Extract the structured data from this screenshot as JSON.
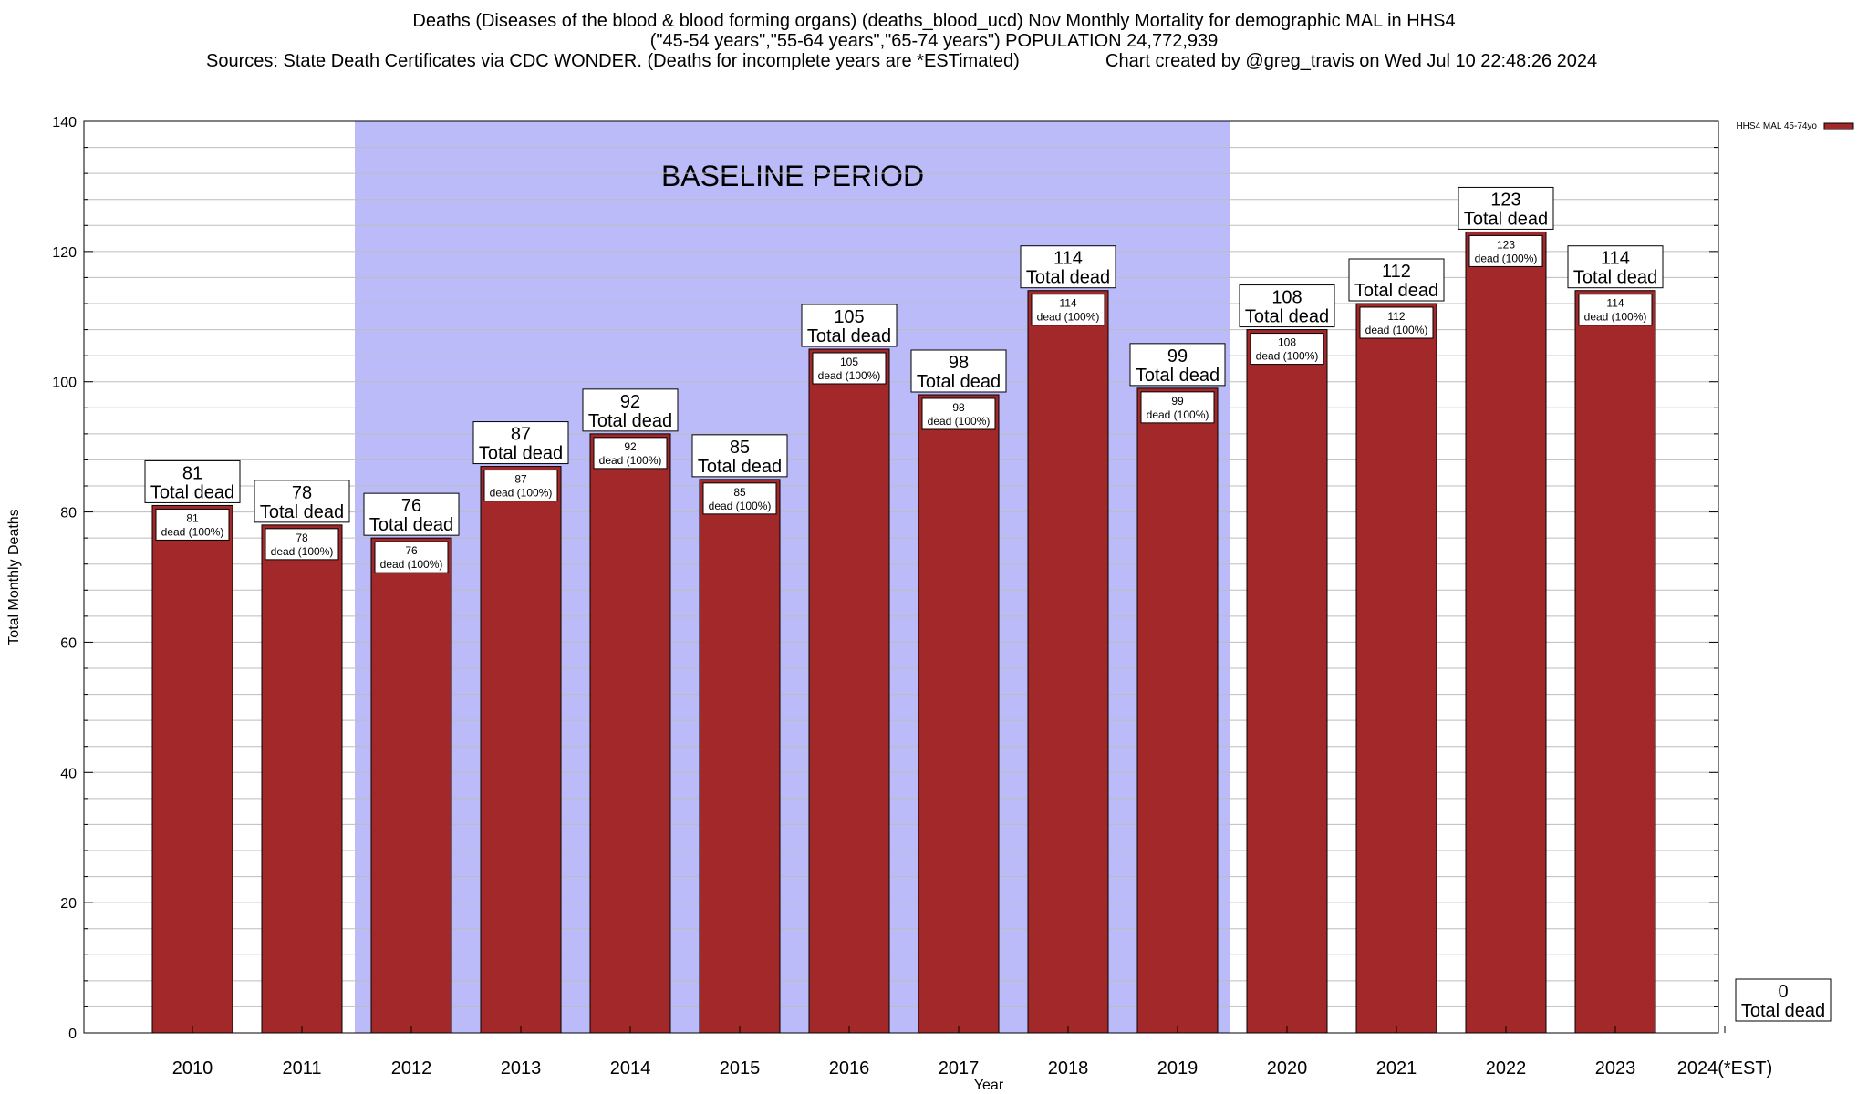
{
  "title": {
    "line1": "Deaths (Diseases of the blood & blood forming organs) (deaths_blood_ucd) Nov Monthly Mortality for demographic MAL in HHS4",
    "line2": "(\"45-54 years\",\"55-64 years\",\"65-74 years\") POPULATION 24,772,939",
    "sources": "Sources: State Death Certificates via CDC WONDER. (Deaths for incomplete years are *ESTimated)",
    "credit": "Chart created by @greg_travis on Wed Jul 10 22:48:26 2024"
  },
  "colors": {
    "bar": "#a3282a",
    "baseline_band": "#bbbbfa",
    "grid": "#bdbdbd"
  },
  "chart_data": {
    "type": "bar",
    "xlabel": "Year",
    "ylabel": "Total Monthly Deaths",
    "ylim": [
      0,
      140
    ],
    "yticks": [
      0,
      20,
      40,
      60,
      80,
      100,
      120,
      140
    ],
    "grid": true,
    "legend_position": "top-right",
    "categories": [
      "2010",
      "2011",
      "2012",
      "2013",
      "2014",
      "2015",
      "2016",
      "2017",
      "2018",
      "2019",
      "2020",
      "2021",
      "2022",
      "2023",
      "2024(*EST)"
    ],
    "series": [
      {
        "name": "HHS4 MAL 45-74yo",
        "values": [
          81,
          78,
          76,
          87,
          92,
          85,
          105,
          98,
          114,
          99,
          108,
          112,
          123,
          114,
          0
        ]
      }
    ],
    "total_label": "Total dead",
    "inner_label": "dead (100%)",
    "baseline_period": {
      "label": "BASELINE PERIOD",
      "start": "2012",
      "end": "2019"
    }
  }
}
